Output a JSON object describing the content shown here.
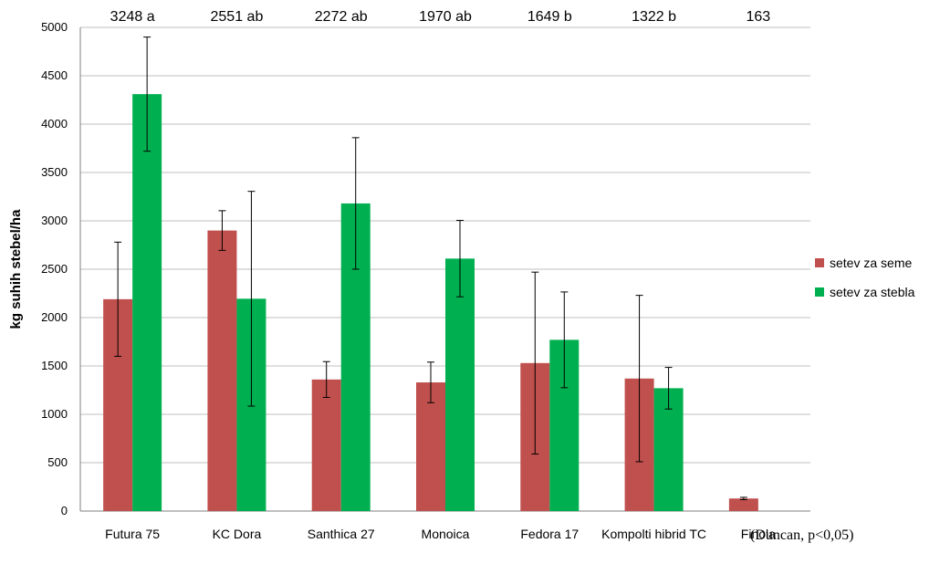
{
  "chart_data": {
    "type": "bar",
    "title": "",
    "xlabel": "",
    "ylabel": "kg suhih stebel/ha",
    "ylim": [
      0,
      5000
    ],
    "yticks": [
      0,
      500,
      1000,
      1500,
      2000,
      2500,
      3000,
      3500,
      4000,
      4500,
      5000
    ],
    "grid": true,
    "legend_position": "right",
    "categories": [
      "Futura 75",
      "KC Dora",
      "Santhica 27",
      "Monoica",
      "Fedora 17",
      "Kompolti hibrid TC",
      "Finola"
    ],
    "top_annotations": [
      "3248 a",
      "2551 ab",
      "2272 ab",
      "1970 ab",
      "1649 b",
      "1322 b",
      "163"
    ],
    "series": [
      {
        "name": "setev za seme",
        "color": "#C0504D",
        "values": [
          2190,
          2900,
          1360,
          1330,
          1530,
          1370,
          130
        ],
        "error": [
          590,
          205,
          185,
          210,
          940,
          860,
          12
        ]
      },
      {
        "name": "setev za stebla",
        "color": "#00B050",
        "values": [
          4310,
          2195,
          3180,
          2610,
          1770,
          1270,
          null
        ],
        "error": [
          590,
          1110,
          680,
          395,
          495,
          215,
          null
        ]
      }
    ],
    "footnote": "(Duncan, p<0,05)"
  }
}
